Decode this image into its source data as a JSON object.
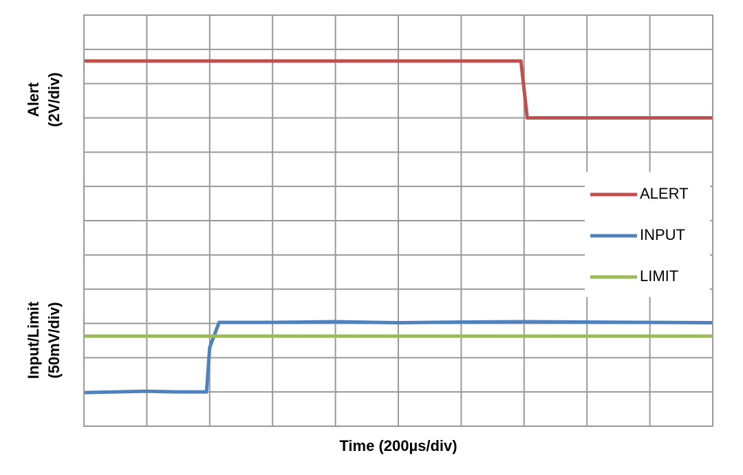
{
  "chart_data": {
    "type": "line",
    "xlabel": "Time (200µs/div)",
    "ylabel_top": [
      "Alert",
      "(2V/div)"
    ],
    "ylabel_bottom": [
      "Input/Limit",
      "(50mV/div)"
    ],
    "xlim": [
      0,
      10
    ],
    "ylim": [
      0,
      12
    ],
    "xticks": [
      0,
      1,
      2,
      3,
      4,
      5,
      6,
      7,
      8,
      9,
      10
    ],
    "yticks": [
      0,
      1,
      2,
      3,
      4,
      5,
      6,
      7,
      8,
      9,
      10,
      11,
      12
    ],
    "grid": true,
    "legend": "right",
    "series": [
      {
        "name": "ALERT",
        "color": "#c0504d",
        "x": [
          0,
          6.95,
          7.05,
          10
        ],
        "values": [
          10.66,
          10.66,
          9.0,
          9.0
        ]
      },
      {
        "name": "INPUT",
        "color": "#4f81bd",
        "x": [
          0,
          0.5,
          1,
          1.5,
          1.95,
          2.0,
          2.15,
          3,
          4,
          5,
          6,
          7,
          8,
          9,
          10
        ],
        "values": [
          0.98,
          1.0,
          1.02,
          1.0,
          1.0,
          2.3,
          3.03,
          3.03,
          3.05,
          3.02,
          3.04,
          3.05,
          3.04,
          3.03,
          3.02
        ]
      },
      {
        "name": "LIMIT",
        "color": "#9bbb59",
        "x": [
          0,
          10
        ],
        "values": [
          2.63,
          2.63
        ]
      }
    ]
  }
}
